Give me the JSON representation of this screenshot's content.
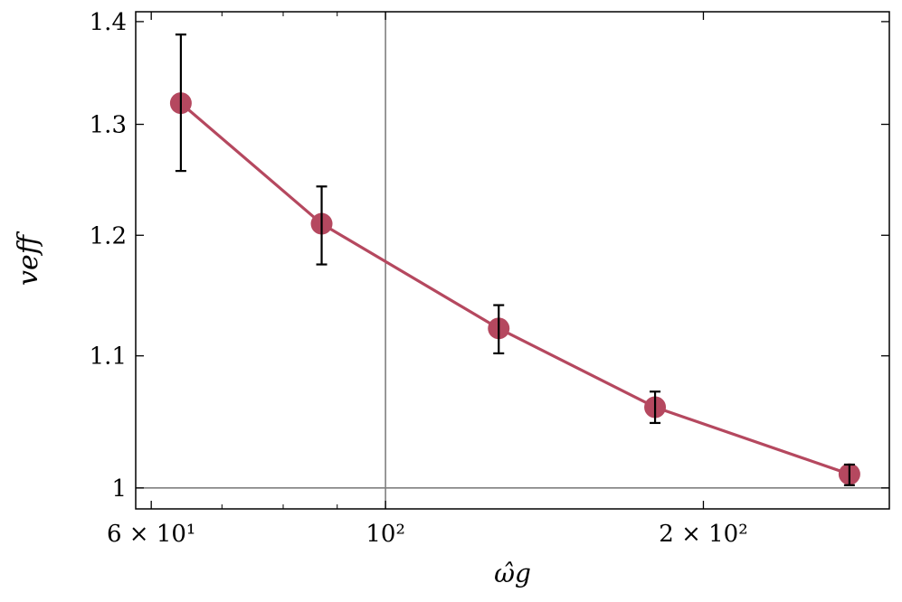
{
  "chart_data": {
    "type": "line",
    "title": "",
    "xlabel": "ω̂g",
    "ylabel": "veff",
    "x_scale": "log",
    "y_scale": "log",
    "xlim": [
      58,
      300
    ],
    "ylim": [
      0.985,
      1.41
    ],
    "grid": false,
    "reference_lines": {
      "x": 100,
      "y": 1.0
    },
    "line_color": "#B5485F",
    "errorbar_color": "#000000",
    "x_ticks": [
      {
        "value": 60,
        "label": "6 × 10¹"
      },
      {
        "value": 100,
        "label": "10²"
      },
      {
        "value": 200,
        "label": "2 × 10²"
      }
    ],
    "y_ticks": [
      {
        "value": 1.0,
        "label": "1"
      },
      {
        "value": 1.1,
        "label": "1.1"
      },
      {
        "value": 1.2,
        "label": "1.2"
      },
      {
        "value": 1.3,
        "label": "1.3"
      },
      {
        "value": 1.4,
        "label": "1.4"
      }
    ],
    "series": [
      {
        "x": [
          64,
          87,
          128,
          180,
          275
        ],
        "y": [
          1.32,
          1.21,
          1.122,
          1.06,
          1.01
        ],
        "yerr_low": [
          1.257,
          1.175,
          1.102,
          1.048,
          1.002
        ],
        "yerr_high": [
          1.387,
          1.243,
          1.141,
          1.072,
          1.017
        ]
      }
    ]
  }
}
